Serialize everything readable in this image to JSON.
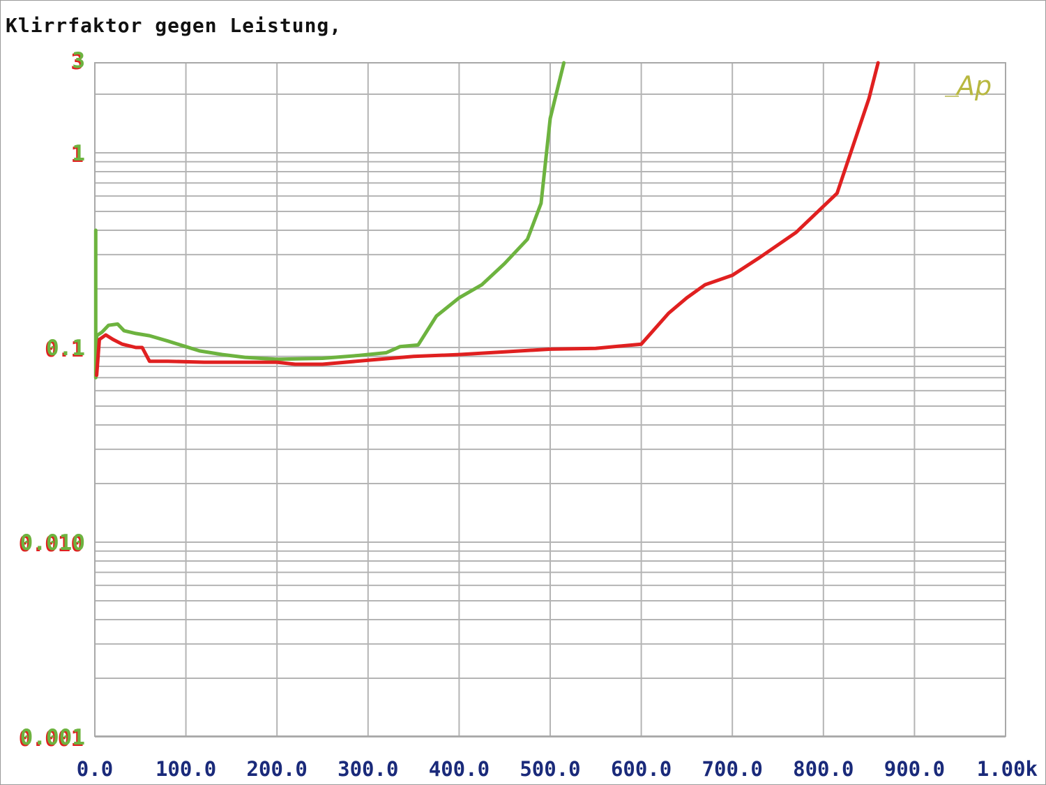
{
  "title": "Klirrfaktor gegen Leistung,",
  "logo_text": "Ap",
  "colors": {
    "green_series": "#6db33f",
    "red_series": "#e02020",
    "x_tick_labels": "#1a2a7a",
    "y_tick_labels": "#6db33f",
    "y_tick_shadow": "#e02020",
    "grid": "#b4b4b4",
    "logo": "#b8b840"
  },
  "chart_data": {
    "type": "line",
    "title": "Klirrfaktor gegen Leistung,",
    "xlabel": "",
    "ylabel": "",
    "xlim": [
      0,
      1000
    ],
    "ylim": [
      0.001,
      3
    ],
    "yscale": "log",
    "grid": true,
    "x_tick_labels": [
      "0.0",
      "100.0",
      "200.0",
      "300.0",
      "400.0",
      "500.0",
      "600.0",
      "700.0",
      "800.0",
      "900.0",
      "1.00k"
    ],
    "y_ticks": [
      {
        "value": 3,
        "label": "3"
      },
      {
        "value": 1,
        "label": "1"
      },
      {
        "value": 0.1,
        "label": "0.1"
      },
      {
        "value": 0.01,
        "label": "0.010"
      },
      {
        "value": 0.001,
        "label": "0.001"
      }
    ],
    "series": [
      {
        "color": "#6db33f",
        "points": [
          [
            1,
            0.4
          ],
          [
            1,
            0.07
          ],
          [
            2,
            0.115
          ],
          [
            8,
            0.12
          ],
          [
            15,
            0.13
          ],
          [
            25,
            0.132
          ],
          [
            32,
            0.122
          ],
          [
            45,
            0.118
          ],
          [
            60,
            0.115
          ],
          [
            80,
            0.108
          ],
          [
            100,
            0.101
          ],
          [
            115,
            0.096
          ],
          [
            140,
            0.092
          ],
          [
            165,
            0.089
          ],
          [
            200,
            0.087
          ],
          [
            250,
            0.088
          ],
          [
            290,
            0.091
          ],
          [
            320,
            0.094
          ],
          [
            335,
            0.101
          ],
          [
            355,
            0.103
          ],
          [
            375,
            0.145
          ],
          [
            400,
            0.18
          ],
          [
            425,
            0.21
          ],
          [
            450,
            0.27
          ],
          [
            475,
            0.36
          ],
          [
            490,
            0.55
          ],
          [
            500,
            1.5
          ],
          [
            515,
            3.0
          ]
        ]
      },
      {
        "color": "#e02020",
        "points": [
          [
            2,
            0.072
          ],
          [
            5,
            0.11
          ],
          [
            12,
            0.116
          ],
          [
            20,
            0.11
          ],
          [
            30,
            0.104
          ],
          [
            45,
            0.1
          ],
          [
            52,
            0.1
          ],
          [
            60,
            0.085
          ],
          [
            80,
            0.085
          ],
          [
            120,
            0.084
          ],
          [
            200,
            0.084
          ],
          [
            220,
            0.082
          ],
          [
            250,
            0.082
          ],
          [
            300,
            0.086
          ],
          [
            350,
            0.09
          ],
          [
            400,
            0.092
          ],
          [
            450,
            0.095
          ],
          [
            500,
            0.098
          ],
          [
            550,
            0.099
          ],
          [
            600,
            0.104
          ],
          [
            630,
            0.15
          ],
          [
            650,
            0.18
          ],
          [
            670,
            0.21
          ],
          [
            700,
            0.235
          ],
          [
            730,
            0.29
          ],
          [
            770,
            0.39
          ],
          [
            815,
            0.62
          ],
          [
            850,
            1.9
          ],
          [
            860,
            3.0
          ]
        ]
      }
    ]
  }
}
